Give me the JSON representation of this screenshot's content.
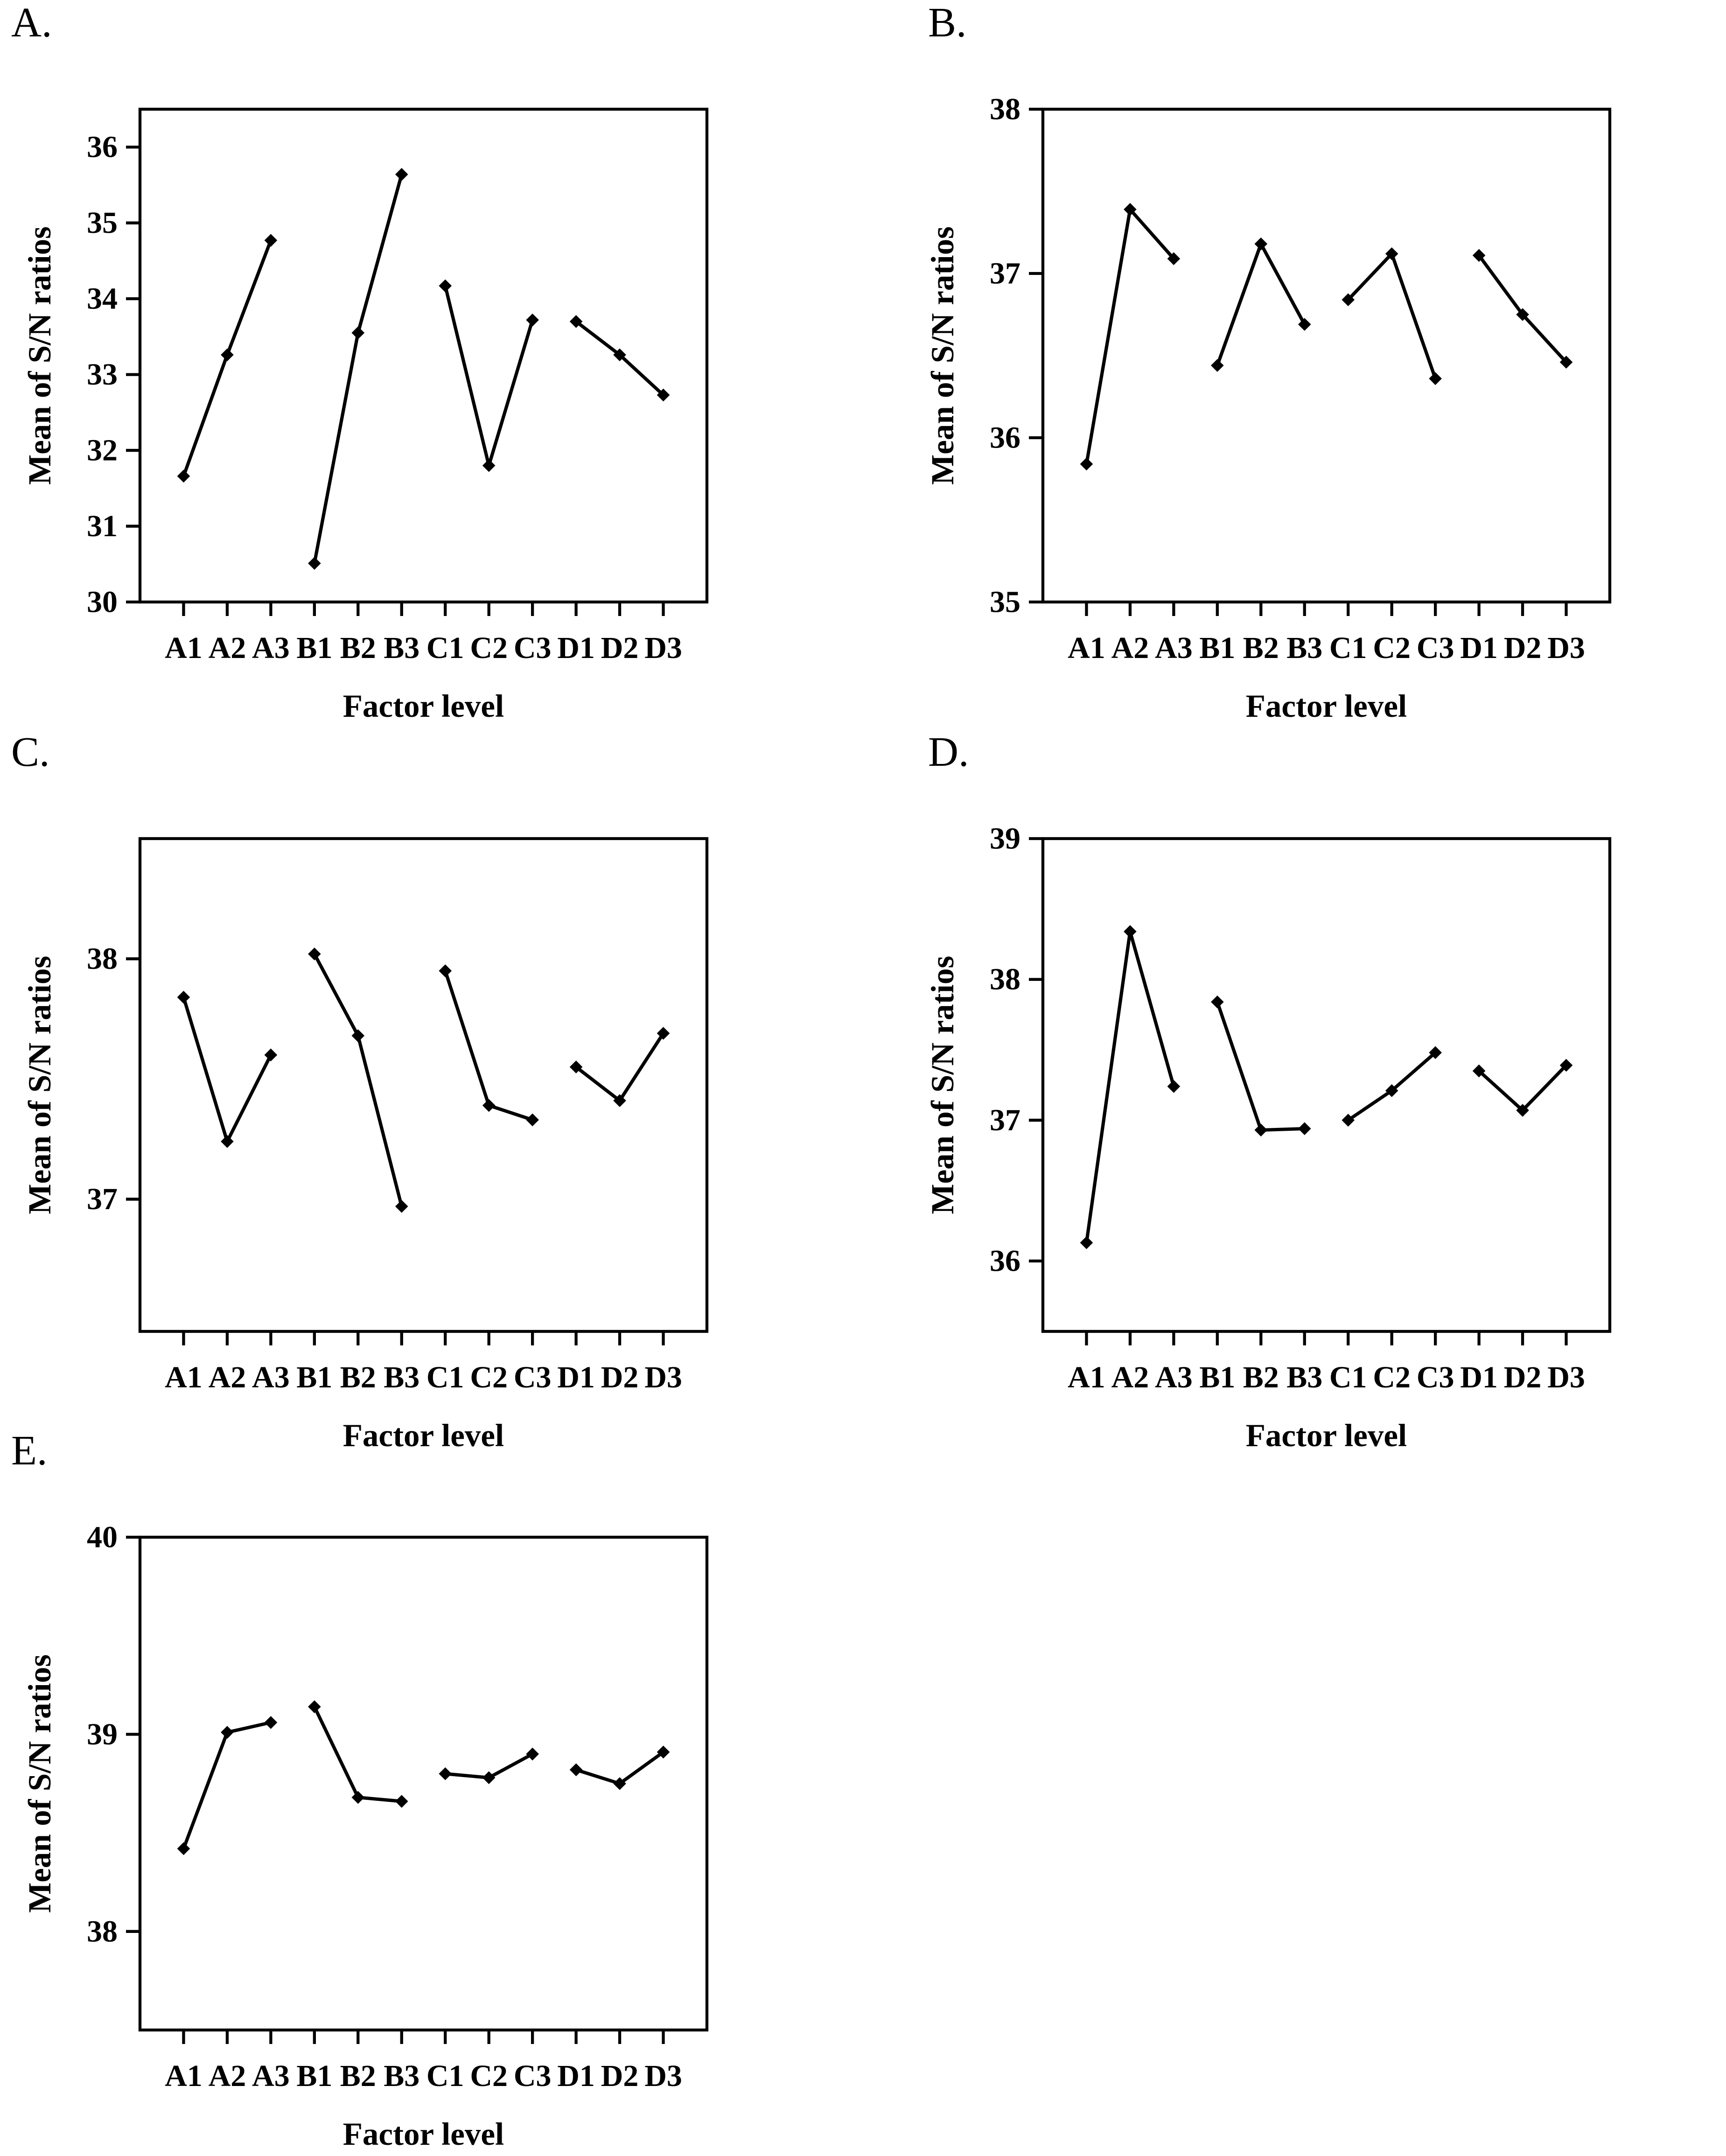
{
  "figure": {
    "background": "#ffffff",
    "line_color": "#000000",
    "marker": "diamond",
    "panel_labels": [
      "A.",
      "B.",
      "C.",
      "D.",
      "E."
    ]
  },
  "chart_data": [
    {
      "type": "line",
      "panel": "A.",
      "title": "",
      "xlabel": "Factor level",
      "ylabel": "Mean of S/N ratios",
      "categories": [
        "A1",
        "A2",
        "A3",
        "B1",
        "B2",
        "B3",
        "C1",
        "C2",
        "C3",
        "D1",
        "D2",
        "D3"
      ],
      "series": [
        {
          "name": "Mean of S/N ratios",
          "values": [
            31.66,
            33.26,
            34.77,
            30.51,
            33.55,
            35.64,
            34.17,
            31.8,
            33.72,
            33.7,
            33.26,
            32.73
          ]
        }
      ],
      "segment_size": 3,
      "ylim": [
        30,
        36.5
      ],
      "yticks": [
        30,
        31,
        32,
        33,
        34,
        35,
        36
      ],
      "grid": false,
      "legend": "none"
    },
    {
      "type": "line",
      "panel": "B.",
      "title": "",
      "xlabel": "Factor level",
      "ylabel": "Mean of S/N ratios",
      "categories": [
        "A1",
        "A2",
        "A3",
        "B1",
        "B2",
        "B3",
        "C1",
        "C2",
        "C3",
        "D1",
        "D2",
        "D3"
      ],
      "series": [
        {
          "name": "Mean of S/N ratios",
          "values": [
            35.84,
            37.39,
            37.09,
            36.44,
            37.18,
            36.69,
            36.84,
            37.12,
            36.36,
            37.11,
            36.75,
            36.46
          ]
        }
      ],
      "segment_size": 3,
      "ylim": [
        35,
        38
      ],
      "yticks": [
        35,
        36,
        37,
        38
      ],
      "grid": false,
      "legend": "none"
    },
    {
      "type": "line",
      "panel": "C.",
      "title": "",
      "xlabel": "Factor level",
      "ylabel": "Mean of S/N ratios",
      "categories": [
        "A1",
        "A2",
        "A3",
        "B1",
        "B2",
        "B3",
        "C1",
        "C2",
        "C3",
        "D1",
        "D2",
        "D3"
      ],
      "series": [
        {
          "name": "Mean of S/N ratios",
          "values": [
            37.84,
            37.24,
            37.6,
            38.02,
            37.68,
            36.97,
            37.95,
            37.39,
            37.33,
            37.55,
            37.41,
            37.69
          ]
        }
      ],
      "segment_size": 3,
      "ylim": [
        36.45,
        38.5
      ],
      "yticks": [
        37,
        38
      ],
      "grid": false,
      "legend": "none"
    },
    {
      "type": "line",
      "panel": "D.",
      "title": "",
      "xlabel": "Factor level",
      "ylabel": "Mean of S/N ratios",
      "categories": [
        "A1",
        "A2",
        "A3",
        "B1",
        "B2",
        "B3",
        "C1",
        "C2",
        "C3",
        "D1",
        "D2",
        "D3"
      ],
      "series": [
        {
          "name": "Mean of S/N ratios",
          "values": [
            36.13,
            38.34,
            37.24,
            37.84,
            36.93,
            36.94,
            37.0,
            37.21,
            37.48,
            37.35,
            37.07,
            37.39
          ]
        }
      ],
      "segment_size": 3,
      "ylim": [
        35.5,
        39
      ],
      "yticks": [
        36,
        37,
        38,
        39
      ],
      "grid": false,
      "legend": "none"
    },
    {
      "type": "line",
      "panel": "E.",
      "title": "",
      "xlabel": "Factor level",
      "ylabel": "Mean of S/N ratios",
      "categories": [
        "A1",
        "A2",
        "A3",
        "B1",
        "B2",
        "B3",
        "C1",
        "C2",
        "C3",
        "D1",
        "D2",
        "D3"
      ],
      "series": [
        {
          "name": "Mean of S/N ratios",
          "values": [
            38.42,
            39.01,
            39.06,
            39.14,
            38.68,
            38.66,
            38.8,
            38.78,
            38.9,
            38.82,
            38.75,
            38.91
          ]
        }
      ],
      "segment_size": 3,
      "ylim": [
        37.5,
        40
      ],
      "yticks": [
        38,
        39,
        40
      ],
      "grid": false,
      "legend": "none"
    }
  ]
}
